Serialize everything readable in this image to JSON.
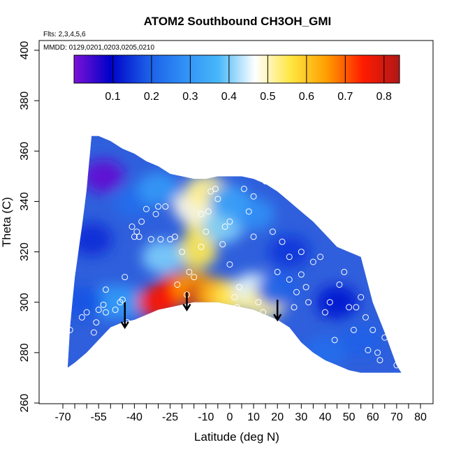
{
  "chart_data": {
    "type": "heatmap",
    "title": "ATOM2 Southbound CH3OH_GMI",
    "annotations": {
      "flights": "Flts: 2,3,4,5,6",
      "dates": "MMDD: 0129,0201,0203,0205,0210"
    },
    "xlabel": "Latitude (deg N)",
    "ylabel": "Theta (C)",
    "xlim": [
      -70,
      85
    ],
    "ylim": [
      260,
      400
    ],
    "x_ticks": [
      -70,
      -55,
      -40,
      -25,
      -10,
      0,
      10,
      20,
      30,
      40,
      50,
      60,
      70,
      80
    ],
    "x_tick_labels": [
      "-70",
      "-55",
      "-40",
      "-25",
      "-10",
      "0",
      "10",
      "20",
      "30",
      "40",
      "50",
      "60",
      "70",
      "80"
    ],
    "y_ticks": [
      260,
      280,
      300,
      320,
      340,
      360,
      380,
      400
    ],
    "y_tick_labels": [
      "260",
      "280",
      "300",
      "320",
      "340",
      "360",
      "380",
      "400"
    ],
    "colorbar": {
      "range": [
        0.0,
        0.84
      ],
      "ticks": [
        0.1,
        0.2,
        0.3,
        0.4,
        0.5,
        0.6,
        0.7,
        0.8
      ],
      "tick_labels": [
        "0.1",
        "0.2",
        "0.3",
        "0.4",
        "0.5",
        "0.6",
        "0.7",
        "0.8"
      ],
      "colors": [
        "#7d12d6",
        "#0000c8",
        "#1a5ae6",
        "#2f8ef5",
        "#48b8fa",
        "#ffffff",
        "#ffe640",
        "#ff9c00",
        "#ff1a00",
        "#b01818"
      ]
    },
    "domain_top": [
      [
        -58,
        366
      ],
      [
        -55,
        366
      ],
      [
        -50,
        364
      ],
      [
        -45,
        361
      ],
      [
        -40,
        359
      ],
      [
        -35,
        356
      ],
      [
        -30,
        354
      ],
      [
        -25,
        351
      ],
      [
        -20,
        350
      ],
      [
        -15,
        349
      ],
      [
        -10,
        349
      ],
      [
        -5,
        350
      ],
      [
        0,
        350
      ],
      [
        5,
        350
      ],
      [
        10,
        349
      ],
      [
        15,
        347
      ],
      [
        20,
        344
      ],
      [
        25,
        340
      ],
      [
        30,
        336
      ],
      [
        35,
        332
      ],
      [
        40,
        327
      ],
      [
        45,
        322
      ],
      [
        50,
        320
      ],
      [
        55,
        318
      ],
      [
        60,
        300
      ],
      [
        65,
        288
      ],
      [
        70,
        275
      ],
      [
        72,
        272
      ]
    ],
    "domain_bottom": [
      [
        -68,
        274
      ],
      [
        -65,
        276
      ],
      [
        -60,
        280
      ],
      [
        -55,
        285
      ],
      [
        -50,
        290
      ],
      [
        -45,
        292
      ],
      [
        -40,
        293
      ],
      [
        -35,
        295
      ],
      [
        -30,
        297
      ],
      [
        -25,
        298
      ],
      [
        -20,
        299
      ],
      [
        -15,
        300
      ],
      [
        -10,
        300
      ],
      [
        -5,
        300
      ],
      [
        0,
        299
      ],
      [
        5,
        298
      ],
      [
        10,
        297
      ],
      [
        15,
        295
      ],
      [
        20,
        293
      ],
      [
        25,
        290
      ],
      [
        30,
        284
      ],
      [
        35,
        280
      ],
      [
        40,
        277
      ],
      [
        45,
        275
      ],
      [
        50,
        273
      ],
      [
        55,
        272
      ],
      [
        60,
        272
      ],
      [
        65,
        272
      ],
      [
        70,
        272
      ],
      [
        72,
        272
      ]
    ],
    "left_edge": [
      [
        -68,
        274
      ],
      [
        -67,
        290
      ],
      [
        -65,
        310
      ],
      [
        -62,
        330
      ],
      [
        -60,
        345
      ],
      [
        -58,
        366
      ]
    ],
    "blobs": [
      {
        "lat": -53,
        "theta": 350,
        "value": 0.02
      },
      {
        "lat": -50,
        "theta": 300,
        "value": 0.3
      },
      {
        "lat": -45,
        "theta": 300,
        "value": 0.3
      },
      {
        "lat": -30,
        "theta": 300,
        "value": 0.75
      },
      {
        "lat": -22,
        "theta": 305,
        "value": 0.75
      },
      {
        "lat": -15,
        "theta": 306,
        "value": 0.65
      },
      {
        "lat": -10,
        "theta": 302,
        "value": 0.82
      },
      {
        "lat": -5,
        "theta": 303,
        "value": 0.62
      },
      {
        "lat": 2,
        "theta": 302,
        "value": 0.55
      },
      {
        "lat": 10,
        "theta": 305,
        "value": 0.45
      },
      {
        "lat": 15,
        "theta": 300,
        "value": 0.52
      },
      {
        "lat": -14,
        "theta": 320,
        "value": 0.55
      },
      {
        "lat": -10,
        "theta": 330,
        "value": 0.55
      },
      {
        "lat": -15,
        "theta": 338,
        "value": 0.48
      },
      {
        "lat": -10,
        "theta": 344,
        "value": 0.52
      },
      {
        "lat": -3,
        "theta": 330,
        "value": 0.4
      },
      {
        "lat": -28,
        "theta": 318,
        "value": 0.4
      },
      {
        "lat": 10,
        "theta": 335,
        "value": 0.28
      },
      {
        "lat": 25,
        "theta": 320,
        "value": 0.15
      },
      {
        "lat": 45,
        "theta": 300,
        "value": 0.12
      },
      {
        "lat": 55,
        "theta": 285,
        "value": 0.2
      },
      {
        "lat": 40,
        "theta": 280,
        "value": 0.22
      },
      {
        "lat": -62,
        "theta": 300,
        "value": 0.18
      },
      {
        "lat": -58,
        "theta": 325,
        "value": 0.14
      },
      {
        "lat": -40,
        "theta": 340,
        "value": 0.22
      },
      {
        "lat": -30,
        "theta": 345,
        "value": 0.3
      },
      {
        "lat": 0,
        "theta": 340,
        "value": 0.32
      },
      {
        "lat": 20,
        "theta": 305,
        "value": 0.2
      }
    ],
    "circles": [
      [
        -67,
        289
      ],
      [
        -62,
        294
      ],
      [
        -60,
        296
      ],
      [
        -57,
        288
      ],
      [
        -56,
        292
      ],
      [
        -55,
        297
      ],
      [
        -53,
        299
      ],
      [
        -52,
        296
      ],
      [
        -52,
        305
      ],
      [
        -48,
        297
      ],
      [
        -46,
        300
      ],
      [
        -45,
        301
      ],
      [
        -44,
        310
      ],
      [
        -43,
        292
      ],
      [
        -41,
        330
      ],
      [
        -40,
        326
      ],
      [
        -39,
        328
      ],
      [
        -38,
        326
      ],
      [
        -37,
        332
      ],
      [
        -35,
        337
      ],
      [
        -33,
        325
      ],
      [
        -31,
        335
      ],
      [
        -30,
        338
      ],
      [
        -29,
        325
      ],
      [
        -27,
        338
      ],
      [
        -25,
        325
      ],
      [
        -23,
        326
      ],
      [
        -22,
        307
      ],
      [
        -20,
        320
      ],
      [
        -18,
        303
      ],
      [
        -17,
        312
      ],
      [
        -15,
        310
      ],
      [
        -14,
        295
      ],
      [
        -12,
        322
      ],
      [
        -12,
        335
      ],
      [
        -10,
        328
      ],
      [
        -9,
        336
      ],
      [
        -8,
        344
      ],
      [
        -6,
        345
      ],
      [
        -5,
        341
      ],
      [
        -3,
        323
      ],
      [
        -2,
        330
      ],
      [
        0,
        332
      ],
      [
        0,
        315
      ],
      [
        2,
        302
      ],
      [
        3,
        298
      ],
      [
        4,
        306
      ],
      [
        6,
        345
      ],
      [
        8,
        336
      ],
      [
        10,
        326
      ],
      [
        10,
        342
      ],
      [
        12,
        300
      ],
      [
        14,
        296
      ],
      [
        15,
        348
      ],
      [
        16,
        348
      ],
      [
        18,
        328
      ],
      [
        20,
        312
      ],
      [
        22,
        324
      ],
      [
        25,
        318
      ],
      [
        25,
        309
      ],
      [
        27,
        298
      ],
      [
        28,
        304
      ],
      [
        30,
        320
      ],
      [
        30,
        311
      ],
      [
        32,
        306
      ],
      [
        33,
        300
      ],
      [
        35,
        316
      ],
      [
        38,
        318
      ],
      [
        40,
        296
      ],
      [
        42,
        300
      ],
      [
        44,
        285
      ],
      [
        46,
        307
      ],
      [
        48,
        312
      ],
      [
        50,
        298
      ],
      [
        52,
        289
      ],
      [
        53,
        298
      ],
      [
        55,
        302
      ],
      [
        57,
        294
      ],
      [
        58,
        281
      ],
      [
        60,
        289
      ],
      [
        62,
        280
      ],
      [
        63,
        277
      ],
      [
        65,
        286
      ],
      [
        66,
        296
      ],
      [
        68,
        291
      ],
      [
        69,
        288
      ],
      [
        70,
        275
      ]
    ],
    "arrows": [
      {
        "lat": -44,
        "theta_top": 300,
        "theta_bottom": 290
      },
      {
        "lat": -18,
        "theta_top": 304,
        "theta_bottom": 297
      },
      {
        "lat": 20,
        "theta_top": 301,
        "theta_bottom": 293
      }
    ]
  }
}
